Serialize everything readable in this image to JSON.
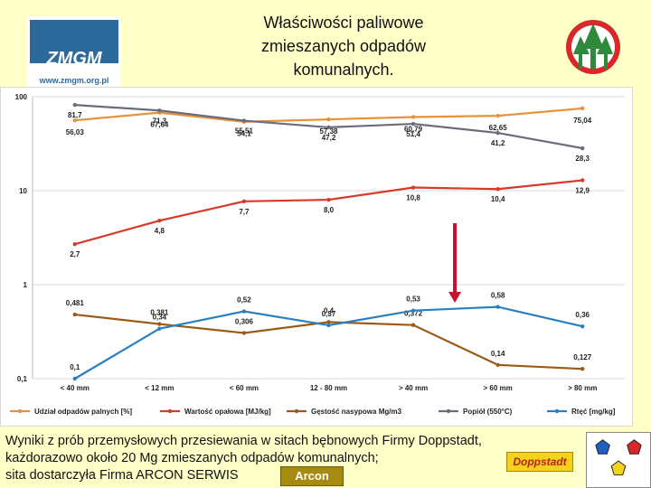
{
  "header": {
    "title_lines": [
      "Właściwości paliwowe",
      "zmieszanych odpadów",
      "komunalnych."
    ],
    "logo_left_text": "ZMGM",
    "logo_left_url": "www.zmgm.org.pl"
  },
  "footer": {
    "lines": [
      "Wyniki z prób przemysłowych przesiewania w sitach bębnowych Firmy Doppstadt,",
      " każdorazowo około 20 Mg zmieszanych odpadów komunalnych;",
      "sita dostarczyła Firma ARCON SERWIS"
    ],
    "doppstadt_logo_text": "Doppstadt",
    "arcon_logo_text": "Arcon"
  },
  "colors": {
    "background": "#ffffc8",
    "orange": "#e8913a",
    "red": "#d63a2a",
    "brown": "#9a5a18",
    "gray": "#6b6b7a",
    "blue": "#2a7fc0",
    "arrow": "#c8102e"
  },
  "chart_data": {
    "type": "line",
    "y_scale": "log",
    "ylim": [
      0.1,
      100
    ],
    "y_ticks": [
      "100",
      "10",
      "1",
      "0,1"
    ],
    "grid": true,
    "legend_position": "bottom",
    "categories": [
      "< 40 mm",
      "< 12 mm",
      "< 60 mm",
      "12 - 80 mm",
      "> 40 mm",
      "> 60 mm",
      "> 80 mm"
    ],
    "series": [
      {
        "name": "Udział odpadów palnych [%]",
        "color": "#e8913a",
        "values": [
          56.03,
          67.64,
          54.1,
          57.38,
          60.79,
          62.65,
          75.04
        ],
        "labels": [
          "56,03",
          "67,64",
          "54,1",
          "57,38",
          "60,79",
          "62,65",
          "75,04"
        ]
      },
      {
        "name": "Wartość opałowa [MJ/kg]",
        "color": "#d63a2a",
        "values": [
          2.7,
          4.8,
          7.7,
          8.0,
          10.8,
          10.4,
          12.9
        ],
        "labels": [
          "2,7",
          "4,8",
          "7,7",
          "8,0",
          "10,8",
          "10,4",
          "12,9"
        ]
      },
      {
        "name": "Gęstość nasypowa Mg/m3",
        "color": "#9a5a18",
        "values": [
          0.481,
          0.381,
          0.306,
          0.4,
          0.372,
          0.14,
          0.127
        ],
        "labels": [
          "0,481",
          "0,381",
          "0,306",
          "0,4",
          "0,372",
          "0,14",
          "0,127"
        ]
      },
      {
        "name": "Popiół (550°C)",
        "color": "#6b6b7a",
        "values": [
          81.7,
          71.3,
          55.51,
          47.2,
          51.4,
          41.2,
          28.3
        ],
        "labels": [
          "81,7",
          "71,3",
          "55,51",
          "47,2",
          "51,4",
          "41,2",
          "28,3"
        ]
      },
      {
        "name": "Rtęć [mg/kg]",
        "color": "#2a7fc0",
        "values": [
          0.1,
          0.34,
          0.52,
          0.37,
          0.53,
          0.58,
          0.36
        ],
        "labels": [
          "0,1",
          "0,34",
          "0,52",
          "0,37",
          "0,53",
          "0,58",
          "0,36"
        ]
      }
    ],
    "annotation": {
      "type": "arrow",
      "direction": "down",
      "category": "> 40 mm"
    }
  }
}
